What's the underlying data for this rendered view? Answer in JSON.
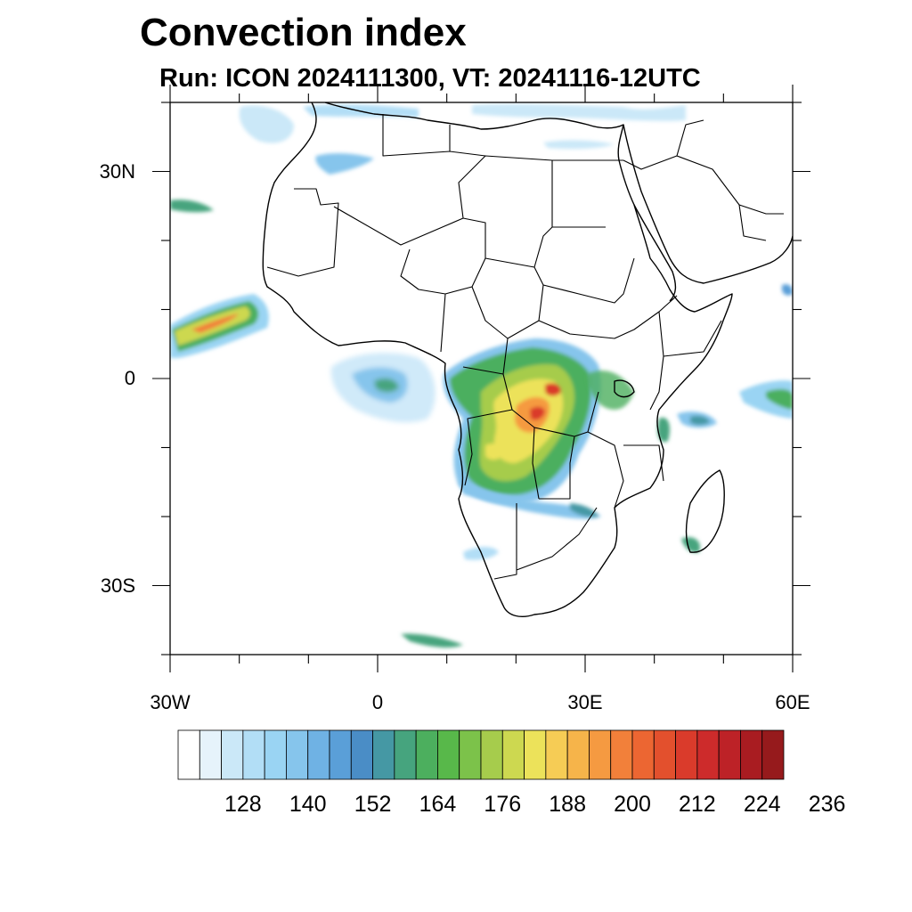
{
  "title": "Convection index",
  "subtitle": "Run: ICON 2024111300,  VT: 20241116-12UTC",
  "axes": {
    "lon_labels": [
      {
        "text": "30W",
        "lon": -30
      },
      {
        "text": "0",
        "lon": 0
      },
      {
        "text": "30E",
        "lon": 30
      },
      {
        "text": "60E",
        "lon": 60
      }
    ],
    "lat_labels": [
      {
        "text": "30N",
        "lat": 30
      },
      {
        "text": "0",
        "lat": 0
      },
      {
        "text": "30S",
        "lat": -30
      }
    ],
    "lon_range": [
      -30,
      60
    ],
    "lat_range": [
      -40,
      40
    ]
  },
  "colorbar": {
    "tick_labels": [
      "128",
      "140",
      "152",
      "164",
      "176",
      "188",
      "200",
      "212",
      "224",
      "236"
    ],
    "colors": [
      "#ffffff",
      "#e6f3fb",
      "#cbe8f8",
      "#b2def6",
      "#9ad4f3",
      "#86c5ec",
      "#6fb2e4",
      "#5a9fd8",
      "#4a8dc6",
      "#4598a4",
      "#46a47e",
      "#4caf5e",
      "#58b84a",
      "#7cc24a",
      "#a6cc4c",
      "#cdd850",
      "#ece25a",
      "#f6cc55",
      "#f6b44a",
      "#f59a41",
      "#f2803a",
      "#ec6632",
      "#e3502d",
      "#da3b2b",
      "#cd2b2b",
      "#bd2227",
      "#a91c21",
      "#961a1c"
    ]
  },
  "icons": {
    "map": "africa-map-icon"
  }
}
